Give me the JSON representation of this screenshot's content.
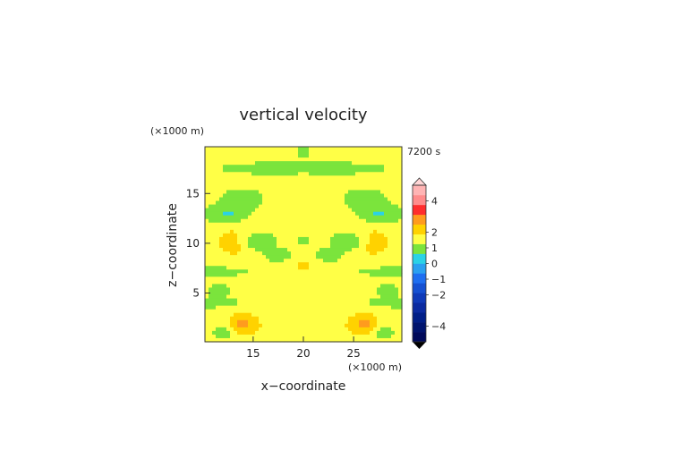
{
  "chart_data": {
    "type": "heatmap",
    "title": "vertical velocity",
    "time_label": "7200 s",
    "xlabel": "x−coordinate",
    "ylabel": "z−coordinate",
    "x_unit": "(×1000 m)",
    "z_unit": "(×1000 m)",
    "xlim": [
      10.2,
      29.8
    ],
    "zlim": [
      0.1,
      19.7
    ],
    "x_ticks": [
      15,
      20,
      25
    ],
    "z_ticks": [
      5,
      10,
      15
    ],
    "colorbar": {
      "tick_labels": [
        "4",
        "2",
        "1",
        "0",
        "−1",
        "−2",
        "−4"
      ],
      "tick_values": [
        4,
        2,
        1,
        0,
        -1,
        -2,
        -4
      ],
      "range": [
        -5,
        5
      ],
      "band_colors": [
        "#000a5a",
        "#00146e",
        "#001e87",
        "#0a2aa0",
        "#0f3ab8",
        "#1550d2",
        "#1e6ef0",
        "#2aa0f0",
        "#2ad2e6",
        "#7be43c",
        "#ffff46",
        "#ffd200",
        "#ff9b1e",
        "#ff2d2d",
        "#ff8c8c",
        "#ffb4b4"
      ]
    },
    "field_description": "symmetric gravity-wave pattern; mostly near zero (green/yellow) with positive lobes (orange) and negative bands (cyan)",
    "values": [
      [
        0.3,
        0.1,
        -0.8,
        0.2,
        0.4,
        0.2,
        0.1,
        0.5,
        0.8,
        1.0,
        0.5,
        0.1,
        0.3,
        0.3,
        0.1,
        0.5,
        1.0,
        0.8,
        0.5,
        0.1,
        0.2,
        0.4,
        0.2,
        -0.8,
        0.1,
        0.3
      ],
      [
        0.2,
        0.1,
        0.3,
        0.5,
        0.8,
        0.6,
        0.2,
        0.4,
        0.6,
        0.5,
        0.1,
        0.0,
        0.4,
        0.4,
        0.0,
        0.1,
        0.5,
        0.6,
        0.4,
        0.2,
        0.6,
        0.8,
        0.5,
        0.3,
        0.1,
        0.2
      ]
    ]
  }
}
